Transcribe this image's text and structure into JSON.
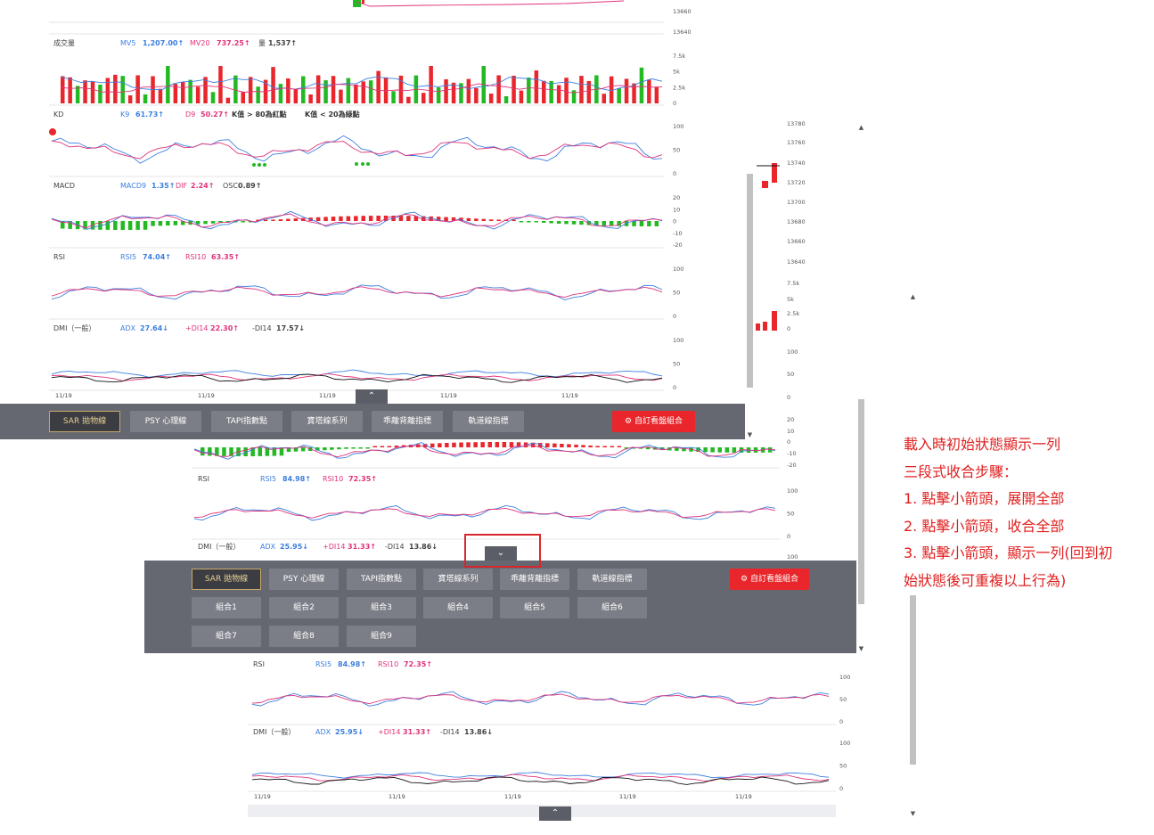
{
  "colors": {
    "up": "#e8262b",
    "down": "#22b922",
    "blue": "#3c7fe0",
    "pink": "#e0337a",
    "black": "#111111",
    "toolbar": "#656870",
    "button": "#7b7e86",
    "active_gold": "#e8cf92"
  },
  "toggle": {
    "up_icon": "chevron-up-icon",
    "down_icon": "chevron-down-icon",
    "up_glyph": "⌃",
    "down_glyph": "⌄"
  },
  "state_expanded": {
    "price_ticks": [
      "13660",
      "13640"
    ],
    "volume": {
      "title": "成交量",
      "mv5_label": "MV5",
      "mv5_value": "1,207.00↑",
      "mv20_label": "MV20",
      "mv20_value": "737.25↑",
      "vol_label": "量",
      "vol_value": "1,537↑",
      "ticks": [
        "7.5k",
        "5k",
        "2.5k",
        "0"
      ]
    },
    "kd": {
      "title": "KD",
      "k_label": "K9",
      "k_value": "61.73↑",
      "d_label": "D9",
      "d_value": "50.27↑",
      "rule1": "K值 > 80為紅點",
      "rule2": "K值 < 20為綠點",
      "ticks": [
        "100",
        "50",
        "0"
      ]
    },
    "macd": {
      "title": "MACD",
      "macd_label": "MACD9",
      "macd_value": "1.35↑",
      "dif_label": "DIF",
      "dif_value": "2.24↑",
      "osc_label": "OSC",
      "osc_value": "0.89↑",
      "ticks": [
        "20",
        "10",
        "0",
        "-10",
        "-20"
      ]
    },
    "rsi": {
      "title": "RSI",
      "rsi5_label": "RSI5",
      "rsi5_value": "74.04↑",
      "rsi10_label": "RSI10",
      "rsi10_value": "63.35↑",
      "ticks": [
        "100",
        "50",
        "0"
      ]
    },
    "dmi": {
      "title": "DMI（一般）",
      "adx_label": "ADX",
      "adx_value": "27.64↓",
      "pdi_label": "+DI14",
      "pdi_value": "22.30↑",
      "mdi_label": "-DI14",
      "mdi_value": "17.57↓",
      "ticks": [
        "100",
        "50",
        "0"
      ]
    },
    "dates": [
      "11/19",
      "11/19",
      "11/19",
      "11/19",
      "11/19"
    ],
    "buttons": [
      "SAR 拋物線",
      "PSY 心理線",
      "TAPI指數點",
      "寶塔線系列",
      "乖離背離指標",
      "軌道線指標"
    ],
    "custom_label": "自訂看盤組合"
  },
  "state_collapsed": {
    "right_ticks": [
      "13780",
      "13760",
      "13740",
      "13720",
      "13700",
      "13680",
      "13660",
      "13640",
      "7.5k",
      "5k",
      "2.5k",
      "0",
      "100",
      "50",
      "0",
      "20",
      "10",
      "0",
      "-10",
      "-20"
    ],
    "rsi": {
      "title": "RSI",
      "rsi5_label": "RSI5",
      "rsi5_value": "84.98↑",
      "rsi10_label": "RSI10",
      "rsi10_value": "72.35↑",
      "ticks": [
        "100",
        "50",
        "0"
      ]
    },
    "dmi": {
      "title": "DMI（一般）",
      "adx_label": "ADX",
      "adx_value": "25.95↓",
      "pdi_label": "+DI14",
      "pdi_value": "31.33↑",
      "mdi_label": "-DI14",
      "mdi_value": "13.86↓",
      "ticks": [
        "100"
      ]
    },
    "buttons": [
      "SAR 拋物線",
      "PSY 心理線",
      "TAPI指數點",
      "寶塔線系列",
      "乖離背離指標",
      "軌道線指標",
      "組合1",
      "組合2",
      "組合3",
      "組合4",
      "組合5",
      "組合6",
      "組合7",
      "組合8",
      "組合9"
    ],
    "custom_label": "自訂看盤組合"
  },
  "state_single": {
    "rsi": {
      "title": "RSI",
      "rsi5_label": "RSI5",
      "rsi5_value": "84.98↑",
      "rsi10_label": "RSI10",
      "rsi10_value": "72.35↑",
      "ticks": [
        "100",
        "50",
        "0"
      ]
    },
    "dmi": {
      "title": "DMI（一般）",
      "adx_label": "ADX",
      "adx_value": "25.95↓",
      "pdi_label": "+DI14",
      "pdi_value": "31.33↑",
      "mdi_label": "-DI14",
      "mdi_value": "13.86↓",
      "ticks": [
        "100",
        "50",
        "0"
      ]
    },
    "dates": [
      "11/19",
      "11/19",
      "11/19",
      "11/19",
      "11/19"
    ]
  },
  "annotation": {
    "lines": [
      "載入時初始狀態顯示一列",
      "三段式收合步驟：",
      "1. 點擊小箭頭，展開全部",
      "2. 點擊小箭頭，收合全部",
      "3. 點擊小箭頭，顯示一列(回到初",
      "始狀態後可重複以上行為)"
    ]
  }
}
